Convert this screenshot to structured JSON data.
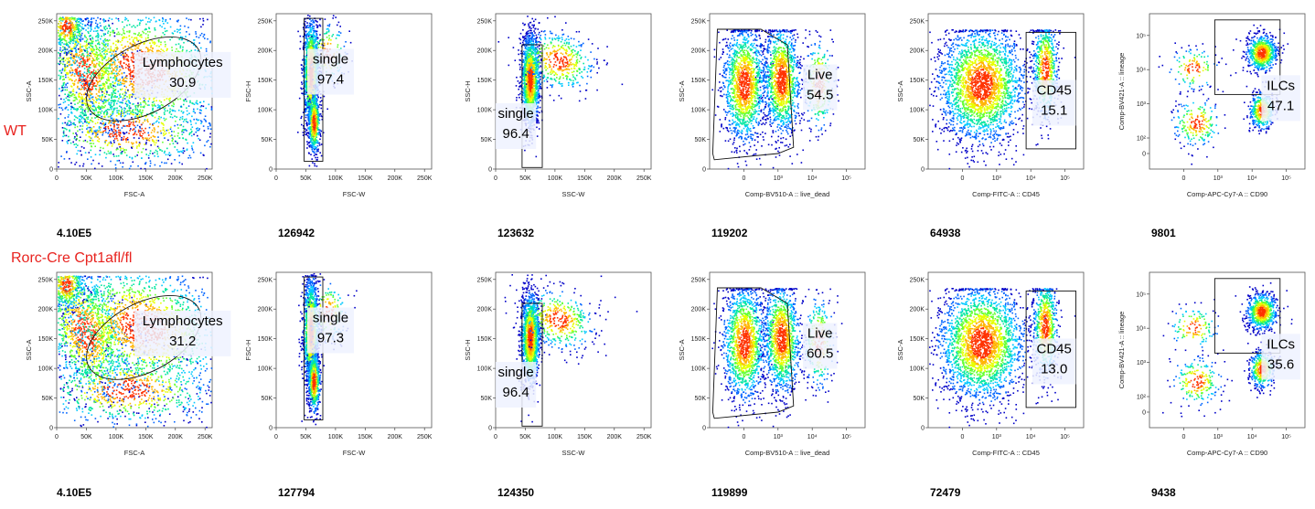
{
  "colors": {
    "group_label": "#e8231f",
    "density": [
      "#0000c8",
      "#0064ff",
      "#00c8ff",
      "#00e6a0",
      "#64ff32",
      "#e6ff00",
      "#ffb400",
      "#ff3200"
    ],
    "gate": "#111111",
    "label_box": "#eef2ff"
  },
  "groups": [
    {
      "label": "WT",
      "panels": [
        {
          "type": "scatter",
          "xlabel": "FSC-A",
          "ylabel": "SSC-A",
          "xscale": "linear",
          "yscale": "linear",
          "xticks": [
            "0",
            "50K",
            "100K",
            "150K",
            "200K",
            "250K"
          ],
          "yticks": [
            "0",
            "50K",
            "100K",
            "150K",
            "200K",
            "250K"
          ],
          "gate": {
            "name": "Lymphocytes",
            "value": "30.9",
            "shape": "ellipse"
          },
          "count": "4.10E5"
        },
        {
          "type": "scatter",
          "xlabel": "FSC-W",
          "ylabel": "FSC-H",
          "xscale": "linear",
          "yscale": "linear",
          "xticks": [
            "0",
            "50K",
            "100K",
            "150K",
            "200K",
            "250K"
          ],
          "yticks": [
            "0",
            "50K",
            "100K",
            "150K",
            "200K",
            "250K"
          ],
          "gate": {
            "name": "single",
            "value": "97.4",
            "shape": "rectangle"
          },
          "count": "126942"
        },
        {
          "type": "scatter",
          "xlabel": "SSC-W",
          "ylabel": "SSC-H",
          "xscale": "linear",
          "yscale": "linear",
          "xticks": [
            "0",
            "50K",
            "100K",
            "150K",
            "200K",
            "250K"
          ],
          "yticks": [
            "0",
            "50K",
            "100K",
            "150K",
            "200K",
            "250K"
          ],
          "gate": {
            "name": "single",
            "value": "96.4",
            "shape": "rectangle"
          },
          "count": "123632"
        },
        {
          "type": "scatter",
          "xlabel": "Comp-BV510-A :: live_dead",
          "ylabel": "SSC-A",
          "xscale": "biexponential",
          "yscale": "linear",
          "xticks": [
            "0",
            "10³",
            "10⁴",
            "10⁵"
          ],
          "yticks": [
            "0",
            "50K",
            "100K",
            "150K",
            "200K",
            "250K"
          ],
          "gate": {
            "name": "Live",
            "value": "54.5",
            "shape": "polygon"
          },
          "count": "119202"
        },
        {
          "type": "scatter",
          "xlabel": "Comp-FITC-A :: CD45",
          "ylabel": "SSC-A",
          "xscale": "biexponential",
          "yscale": "linear",
          "xticks": [
            "0",
            "10³",
            "10⁴",
            "10⁵"
          ],
          "yticks": [
            "0",
            "50K",
            "100K",
            "150K",
            "200K",
            "250K"
          ],
          "gate": {
            "name": "CD45",
            "value": "15.1",
            "shape": "rectangle"
          },
          "count": "64938"
        },
        {
          "type": "scatter",
          "xlabel": "Comp-APC-Cy7-A :: CD90",
          "ylabel": "Comp-BV421-A :: lineage",
          "xscale": "biexponential",
          "yscale": "biexponential",
          "xticks": [
            "0",
            "10³",
            "10⁴",
            "10⁵"
          ],
          "yticks": [
            "0",
            "10²",
            "10³",
            "10⁴",
            "10⁵"
          ],
          "gate": {
            "name": "ILCs",
            "value": "47.1",
            "shape": "rectangle"
          },
          "count": "9801"
        }
      ]
    },
    {
      "label": "Rorc-Cre Cpt1afl/fl",
      "panels": [
        {
          "type": "scatter",
          "xlabel": "FSC-A",
          "ylabel": "SSC-A",
          "xscale": "linear",
          "yscale": "linear",
          "xticks": [
            "0",
            "50K",
            "100K",
            "150K",
            "200K",
            "250K"
          ],
          "yticks": [
            "0",
            "50K",
            "100K",
            "150K",
            "200K",
            "250K"
          ],
          "gate": {
            "name": "Lymphocytes",
            "value": "31.2",
            "shape": "ellipse"
          },
          "count": "4.10E5"
        },
        {
          "type": "scatter",
          "xlabel": "FSC-W",
          "ylabel": "FSC-H",
          "xscale": "linear",
          "yscale": "linear",
          "xticks": [
            "0",
            "50K",
            "100K",
            "150K",
            "200K",
            "250K"
          ],
          "yticks": [
            "0",
            "50K",
            "100K",
            "150K",
            "200K",
            "250K"
          ],
          "gate": {
            "name": "single",
            "value": "97.3",
            "shape": "rectangle"
          },
          "count": "127794"
        },
        {
          "type": "scatter",
          "xlabel": "SSC-W",
          "ylabel": "SSC-H",
          "xscale": "linear",
          "yscale": "linear",
          "xticks": [
            "0",
            "50K",
            "100K",
            "150K",
            "200K",
            "250K"
          ],
          "yticks": [
            "0",
            "50K",
            "100K",
            "150K",
            "200K",
            "250K"
          ],
          "gate": {
            "name": "single",
            "value": "96.4",
            "shape": "rectangle"
          },
          "count": "124350"
        },
        {
          "type": "scatter",
          "xlabel": "Comp-BV510-A :: live_dead",
          "ylabel": "SSC-A",
          "xscale": "biexponential",
          "yscale": "linear",
          "xticks": [
            "0",
            "10³",
            "10⁴",
            "10⁵"
          ],
          "yticks": [
            "0",
            "50K",
            "100K",
            "150K",
            "200K",
            "250K"
          ],
          "gate": {
            "name": "Live",
            "value": "60.5",
            "shape": "polygon"
          },
          "count": "119899"
        },
        {
          "type": "scatter",
          "xlabel": "Comp-FITC-A :: CD45",
          "ylabel": "SSC-A",
          "xscale": "biexponential",
          "yscale": "linear",
          "xticks": [
            "0",
            "10³",
            "10⁴",
            "10⁵"
          ],
          "yticks": [
            "0",
            "50K",
            "100K",
            "150K",
            "200K",
            "250K"
          ],
          "gate": {
            "name": "CD45",
            "value": "13.0",
            "shape": "rectangle"
          },
          "count": "72479"
        },
        {
          "type": "scatter",
          "xlabel": "Comp-APC-Cy7-A :: CD90",
          "ylabel": "Comp-BV421-A :: lineage",
          "xscale": "biexponential",
          "yscale": "biexponential",
          "xticks": [
            "0",
            "10³",
            "10⁴",
            "10⁵"
          ],
          "yticks": [
            "0",
            "10²",
            "10³",
            "10⁴",
            "10⁵"
          ],
          "gate": {
            "name": "ILCs",
            "value": "35.6",
            "shape": "rectangle"
          },
          "count": "9438"
        }
      ]
    }
  ]
}
